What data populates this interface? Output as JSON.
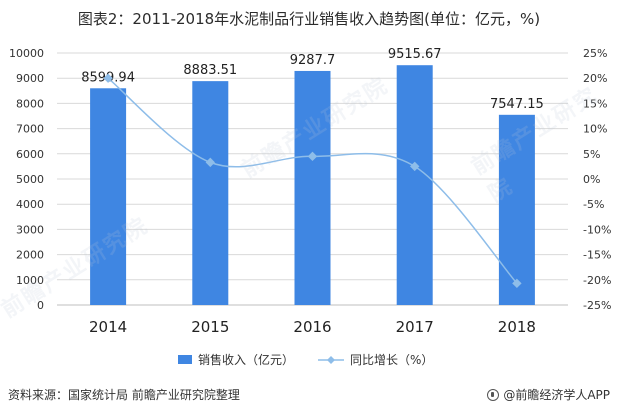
{
  "title": "图表2：2011-2018年水泥制品行业销售收入趋势图(单位：亿元，%)",
  "colors": {
    "bar": "#3f86e2",
    "line": "#8ebde9",
    "grid": "#d9d9d9",
    "axis": "#555555"
  },
  "chart_data": {
    "type": "bar",
    "categories": [
      "2014",
      "2015",
      "2016",
      "2017",
      "2018"
    ],
    "series": [
      {
        "name": "销售收入（亿元）",
        "type": "bar",
        "axis": "left",
        "values": [
          8599.94,
          8883.51,
          9287.7,
          9515.67,
          7547.15
        ],
        "labels": [
          "8599.94",
          "8883.51",
          "9287.7",
          "9515.67",
          "7547.15"
        ]
      },
      {
        "name": "同比增长（%）",
        "type": "line",
        "axis": "right",
        "values": [
          20.0,
          3.3,
          4.5,
          2.5,
          -20.7
        ]
      }
    ],
    "y_left": {
      "min": 0,
      "max": 10000,
      "step": 1000,
      "ticks": [
        "0",
        "1000",
        "2000",
        "3000",
        "4000",
        "5000",
        "6000",
        "7000",
        "8000",
        "9000",
        "10000"
      ]
    },
    "y_right": {
      "min": -25,
      "max": 25,
      "step": 5,
      "ticks": [
        "-25%",
        "-20%",
        "-15%",
        "-10%",
        "-5%",
        "0%",
        "5%",
        "10%",
        "15%",
        "20%",
        "25%"
      ]
    },
    "legend": [
      "销售收入（亿元）",
      "同比增长（%）"
    ],
    "legend_position": "bottom",
    "grid": true
  },
  "footer": {
    "source": "资料来源：国家统计局 前瞻产业研究院整理",
    "brand": "@前瞻经济学人APP"
  },
  "watermark": "前瞻产业研究院"
}
